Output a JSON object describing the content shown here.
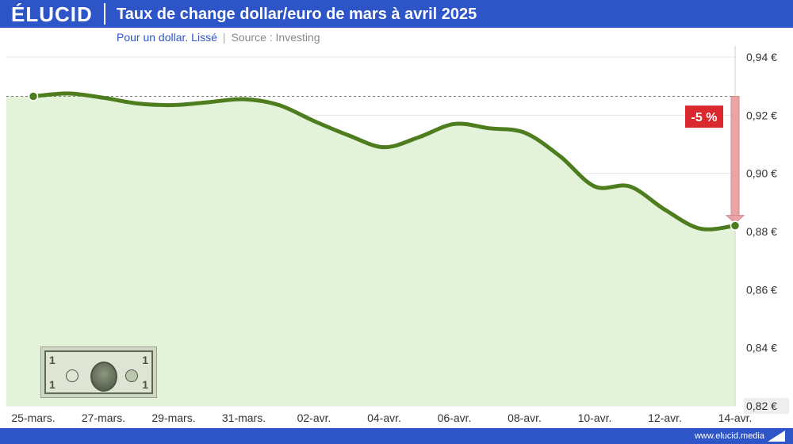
{
  "header": {
    "logo": "ÉLUCID",
    "title": "Taux de change dollar/euro de mars à avril 2025"
  },
  "subtitle": {
    "main": "Pour un dollar. Lissé",
    "separator": "|",
    "source": "Source : Investing"
  },
  "footer": {
    "url": "www.elucid.media"
  },
  "colors": {
    "brand_blue": "#2e55c8",
    "line_green": "#4e7d1f",
    "area_green": "#e3f3d9",
    "badge_red": "#d9292e",
    "arrow_pink": "#e9a4a6"
  },
  "icons": {
    "banknote": "one-dollar-bill-image",
    "footer_logo": "elucid-mark-icon"
  },
  "chart_data": {
    "type": "area",
    "title": "Taux de change dollar/euro de mars à avril 2025",
    "xlabel": "",
    "ylabel": "",
    "ylim": [
      0.82,
      0.94
    ],
    "yticks": [
      0.82,
      0.84,
      0.86,
      0.88,
      0.9,
      0.92,
      0.94
    ],
    "ytick_labels": [
      "0,82 €",
      "0,84 €",
      "0,86 €",
      "0,88 €",
      "0,90 €",
      "0,92 €",
      "0,94 €"
    ],
    "xtick_labels": [
      "25-mars.",
      "27-mars.",
      "29-mars.",
      "31-mars.",
      "02-avr.",
      "04-avr.",
      "06-avr.",
      "08-avr.",
      "10-avr.",
      "12-avr.",
      "14-avr."
    ],
    "x": [
      "25-mars",
      "26-mars",
      "27-mars",
      "28-mars",
      "29-mars",
      "30-mars",
      "31-mars",
      "01-avr",
      "02-avr",
      "03-avr",
      "04-avr",
      "05-avr",
      "06-avr",
      "07-avr",
      "08-avr",
      "09-avr",
      "10-avr",
      "11-avr",
      "12-avr",
      "13-avr",
      "14-avr"
    ],
    "values": [
      0.9265,
      0.9275,
      0.926,
      0.924,
      0.9235,
      0.9245,
      0.9255,
      0.9235,
      0.918,
      0.913,
      0.909,
      0.9125,
      0.917,
      0.9155,
      0.914,
      0.906,
      0.8955,
      0.8955,
      0.8875,
      0.881,
      0.882
    ],
    "reference_line": 0.9265,
    "annotation": {
      "text": "-5 %"
    },
    "grid": true,
    "y_axis_position": "right",
    "legend": "none"
  }
}
